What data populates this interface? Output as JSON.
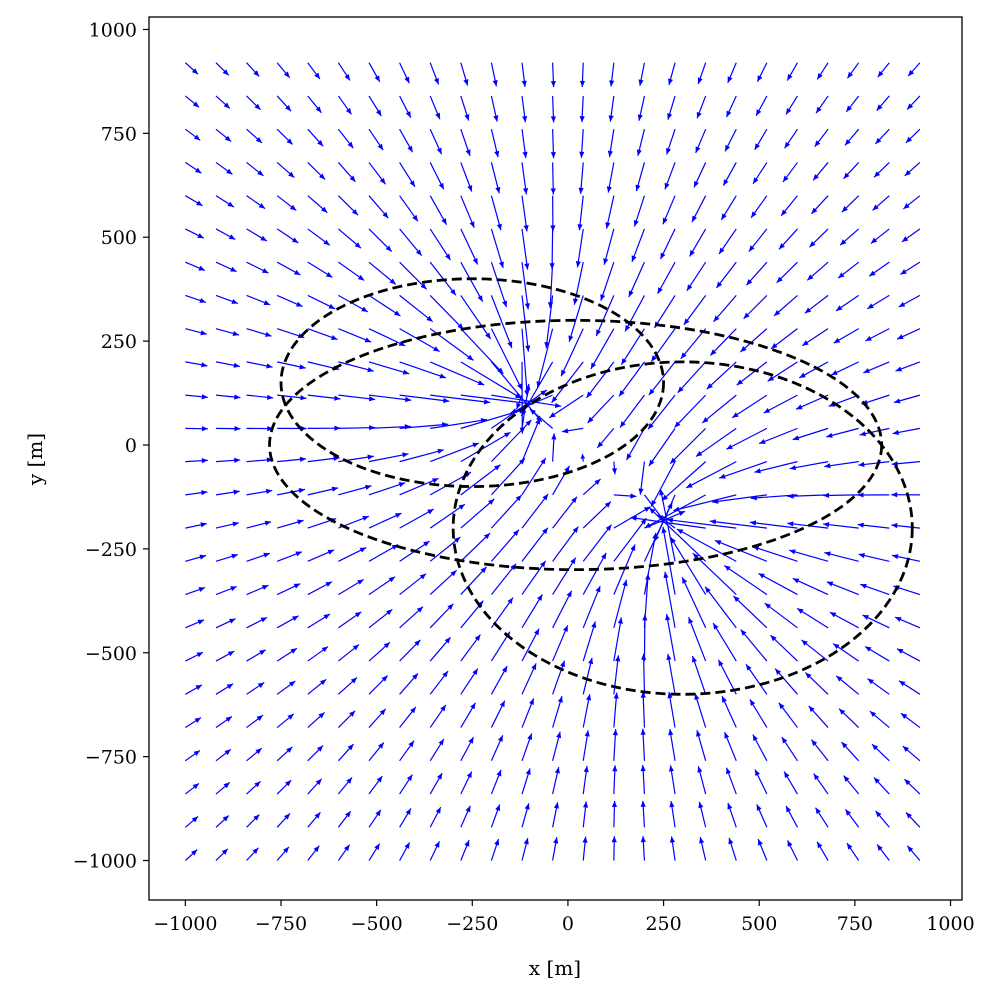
{
  "chart_data": {
    "type": "quiver",
    "title": "",
    "xlabel": "x [m]",
    "ylabel": "y [m]",
    "xlim": [
      -1095,
      1030
    ],
    "ylim": [
      -1095,
      1030
    ],
    "xticks": [
      -1000,
      -750,
      -500,
      -250,
      0,
      250,
      500,
      750,
      1000
    ],
    "yticks": [
      -1000,
      -750,
      -500,
      -250,
      0,
      250,
      500,
      750,
      1000
    ],
    "xtick_labels": [
      "−1000",
      "−750",
      "−500",
      "−250",
      "0",
      "250",
      "500",
      "750",
      "1000"
    ],
    "ytick_labels": [
      "−1000",
      "−750",
      "−500",
      "−250",
      "0",
      "250",
      "500",
      "750",
      "1000"
    ],
    "grid": false,
    "vector_field": {
      "color": "#0000ff",
      "grid_x_range": [
        -1000,
        920
      ],
      "grid_y_range": [
        -1000,
        920
      ],
      "grid_count": 25,
      "sources": [
        {
          "x": -140,
          "y": 120,
          "strength": 1.0
        },
        {
          "x": 280,
          "y": -200,
          "strength": 1.0
        }
      ]
    },
    "ellipses": [
      {
        "name": "",
        "cx": -250,
        "cy": 150,
        "rx": 500,
        "ry": 250,
        "style": "dashed",
        "color": "#000000"
      },
      {
        "name": "",
        "cx": 20,
        "cy": 0,
        "rx": 800,
        "ry": 300,
        "style": "dashed",
        "color": "#000000"
      },
      {
        "name": "",
        "cx": 300,
        "cy": -200,
        "rx": 600,
        "ry": 400,
        "style": "dashed",
        "color": "#000000"
      }
    ]
  }
}
